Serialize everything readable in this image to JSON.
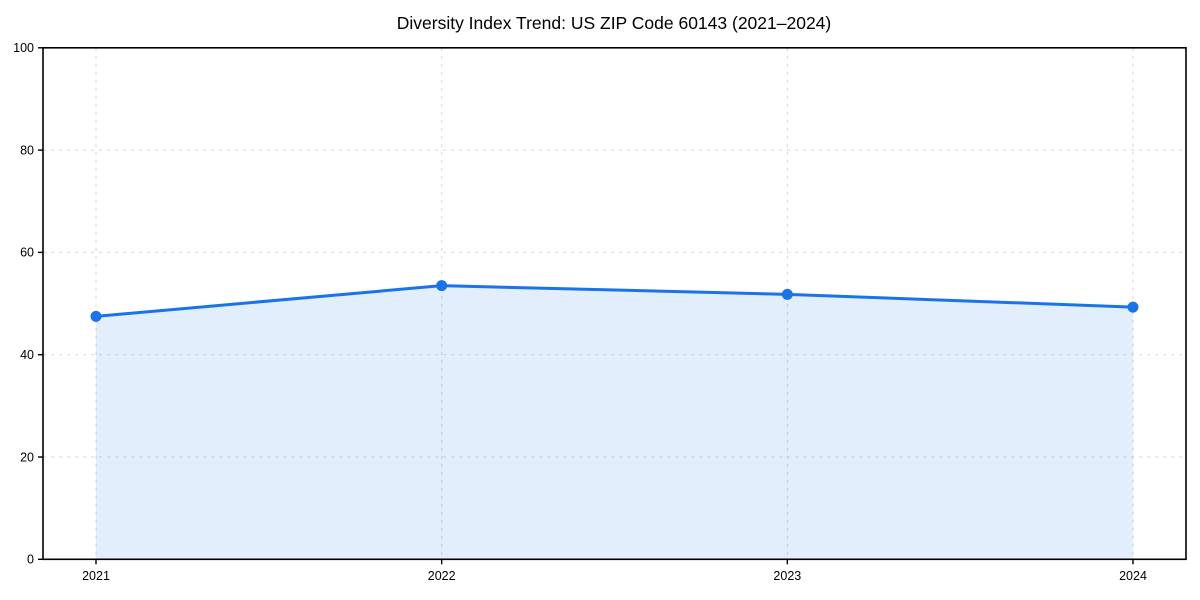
{
  "chart_data": {
    "type": "area",
    "title": "Diversity Index Trend: US ZIP Code 60143 (2021–2024)",
    "categories": [
      "2021",
      "2022",
      "2023",
      "2024"
    ],
    "series": [
      {
        "name": "Diversity Index",
        "values": [
          47.5,
          53.5,
          51.8,
          49.3
        ]
      }
    ],
    "xlabel": "",
    "ylabel": "",
    "ylim": [
      0,
      100
    ],
    "yticks": [
      0,
      20,
      40,
      60,
      80,
      100
    ],
    "grid": true,
    "grid_style": "dashed",
    "legend_position": "none",
    "colors": {
      "line": "#1a73e8",
      "marker": "#1a73e8",
      "fill": "#1a73e8",
      "fill_opacity": 0.12,
      "gridline": "#d9d9d9",
      "spine": "#000000",
      "text": "#000000",
      "background": "#ffffff"
    }
  }
}
